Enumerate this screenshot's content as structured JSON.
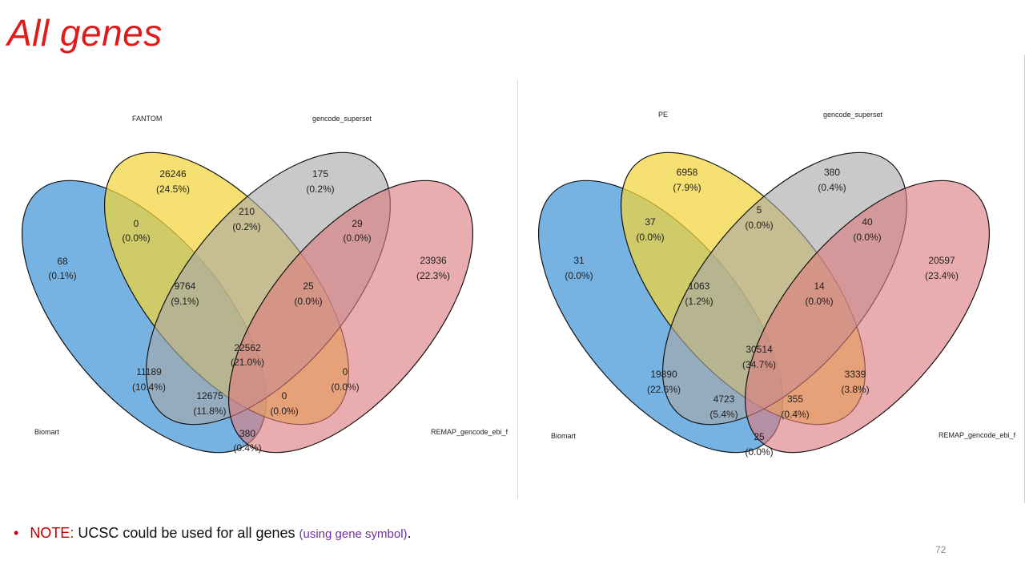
{
  "slide": {
    "title": "All genes",
    "page_number": "72"
  },
  "note": {
    "bullet": "•",
    "label": "NOTE:",
    "text": " UCSC could be used for all genes ",
    "aside": "(using gene symbol)",
    "end": "."
  },
  "colors": {
    "title": "#e01b1b",
    "set_blue": "#4a9ad8",
    "set_yellow": "#f2d43a",
    "set_grey": "#a8a8a8",
    "set_red": "#dd7a7e",
    "note_label": "#c00000",
    "note_aside": "#7030a0"
  },
  "venn_left": {
    "sets": [
      "Biomart",
      "FANTOM",
      "gencode_superset",
      "REMAP_gencode_ebi_f"
    ],
    "regions": [
      {
        "id": "blue_only",
        "value": "68",
        "pct": "(0.1%)"
      },
      {
        "id": "yellow_only",
        "value": "26246",
        "pct": "(24.5%)"
      },
      {
        "id": "grey_only",
        "value": "175",
        "pct": "(0.2%)"
      },
      {
        "id": "red_only",
        "value": "23936",
        "pct": "(22.3%)"
      },
      {
        "id": "blue_yellow",
        "value": "0",
        "pct": "(0.0%)"
      },
      {
        "id": "yellow_grey",
        "value": "210",
        "pct": "(0.2%)"
      },
      {
        "id": "grey_red",
        "value": "29",
        "pct": "(0.0%)"
      },
      {
        "id": "blue_yellow_grey",
        "value": "9764",
        "pct": "(9.1%)"
      },
      {
        "id": "yellow_grey_red",
        "value": "25",
        "pct": "(0.0%)"
      },
      {
        "id": "all_four",
        "value": "22562",
        "pct": "(21.0%)"
      },
      {
        "id": "blue_grey",
        "value": "11189",
        "pct": "(10.4%)"
      },
      {
        "id": "yellow_red",
        "value": "0",
        "pct": "(0.0%)"
      },
      {
        "id": "blue_grey_red",
        "value": "12675",
        "pct": "(11.8%)"
      },
      {
        "id": "blue_yellow_red",
        "value": "0",
        "pct": "(0.0%)"
      },
      {
        "id": "blue_red",
        "value": "380",
        "pct": "(0.4%)"
      }
    ]
  },
  "venn_right": {
    "sets": [
      "Biomart",
      "PE",
      "gencode_superset",
      "REMAP_gencode_ebi_f"
    ],
    "regions": [
      {
        "id": "blue_only",
        "value": "31",
        "pct": "(0.0%)"
      },
      {
        "id": "yellow_only",
        "value": "6958",
        "pct": "(7.9%)"
      },
      {
        "id": "grey_only",
        "value": "380",
        "pct": "(0.4%)"
      },
      {
        "id": "red_only",
        "value": "20597",
        "pct": "(23.4%)"
      },
      {
        "id": "blue_yellow",
        "value": "37",
        "pct": "(0.0%)"
      },
      {
        "id": "yellow_grey",
        "value": "5",
        "pct": "(0.0%)"
      },
      {
        "id": "grey_red",
        "value": "40",
        "pct": "(0.0%)"
      },
      {
        "id": "blue_yellow_grey",
        "value": "1063",
        "pct": "(1.2%)"
      },
      {
        "id": "yellow_grey_red",
        "value": "14",
        "pct": "(0.0%)"
      },
      {
        "id": "all_four",
        "value": "30514",
        "pct": "(34.7%)"
      },
      {
        "id": "blue_grey",
        "value": "19890",
        "pct": "(22.6%)"
      },
      {
        "id": "yellow_red",
        "value": "3339",
        "pct": "(3.8%)"
      },
      {
        "id": "blue_grey_red",
        "value": "4723",
        "pct": "(5.4%)"
      },
      {
        "id": "blue_yellow_red",
        "value": "355",
        "pct": "(0.4%)"
      },
      {
        "id": "blue_red",
        "value": "25",
        "pct": "(0.0%)"
      }
    ]
  }
}
